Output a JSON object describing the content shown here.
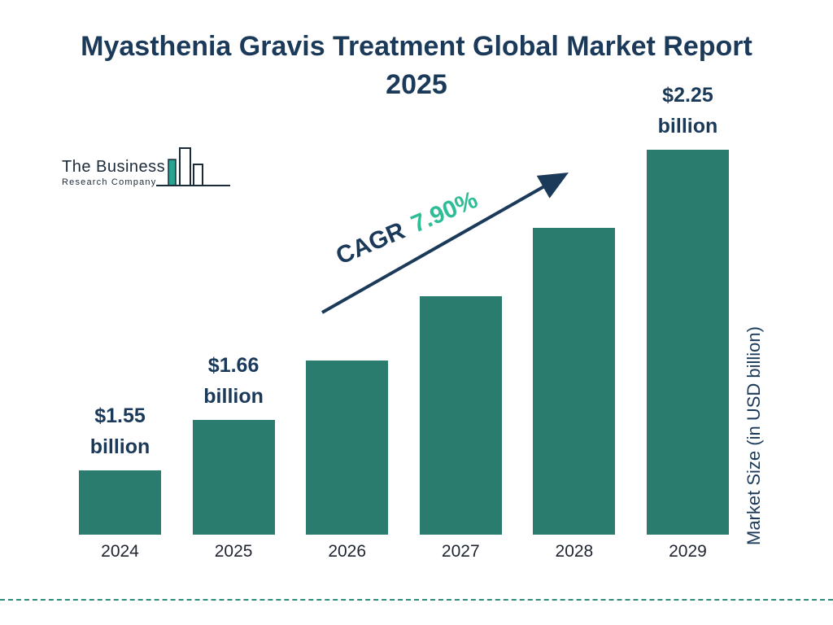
{
  "title": "Myasthenia Gravis Treatment Global Market Report 2025",
  "logo": {
    "line1": "The Business",
    "line2": "Research Company"
  },
  "cagr": {
    "prefix": "CAGR",
    "value": "7.90%"
  },
  "y_axis_label": "Market Size (in USD billion)",
  "colors": {
    "bar": "#2a7d6e",
    "navy": "#1b3a5a",
    "cagr_green": "#2ebd96",
    "dashed_line": "#2f8d7c",
    "logo_teal": "#2aa292"
  },
  "chart_data": {
    "type": "bar",
    "title": "Myasthenia Gravis Treatment Global Market Report 2025",
    "categories": [
      "2024",
      "2025",
      "2026",
      "2027",
      "2028",
      "2029"
    ],
    "values": [
      1.55,
      1.66,
      1.79,
      1.93,
      2.08,
      2.25
    ],
    "unit": "USD billion",
    "ylabel": "Market Size (in USD billion)",
    "xlabel": "",
    "cagr": "7.90%",
    "grid": false,
    "legend": false,
    "baseline_value": 1.41,
    "ymax": 2.25,
    "bar_labels": [
      {
        "index": 0,
        "lines": [
          "$1.55",
          "billion"
        ]
      },
      {
        "index": 1,
        "lines": [
          "$1.66",
          "billion"
        ]
      },
      {
        "index": 5,
        "lines": [
          "$2.25",
          "billion"
        ]
      }
    ]
  }
}
